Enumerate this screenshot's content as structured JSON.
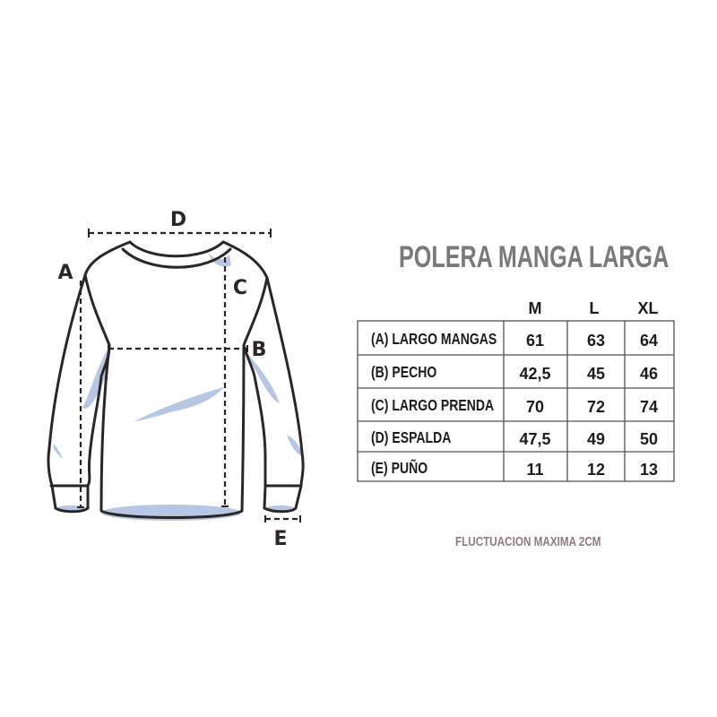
{
  "title": "POLERA MANGA LARGA",
  "diagram": {
    "labels": {
      "a": "A",
      "b": "B",
      "c": "C",
      "d": "D",
      "e": "E"
    },
    "shade_color": "#b8c6e6",
    "outline_color": "#2b2626"
  },
  "table": {
    "columns": [
      "M",
      "L",
      "XL"
    ],
    "rows": [
      {
        "label": "(A) LARGO MANGAS",
        "values": [
          "61",
          "63",
          "64"
        ]
      },
      {
        "label": "(B) PECHO",
        "values": [
          "42,5",
          "45",
          "46"
        ]
      },
      {
        "label": "(C) LARGO PRENDA",
        "values": [
          "70",
          "72",
          "74"
        ]
      },
      {
        "label": "(D) ESPALDA",
        "values": [
          "47,5",
          "49",
          "50"
        ]
      },
      {
        "label": "(E) PUÑO",
        "values": [
          "11",
          "12",
          "13"
        ]
      }
    ]
  },
  "footer_note": "FLUCTUACION MAXIMA 2CM",
  "colors": {
    "title": "#7b7878",
    "footer": "#8a7c7c",
    "table_border": "#5a4f4f"
  }
}
